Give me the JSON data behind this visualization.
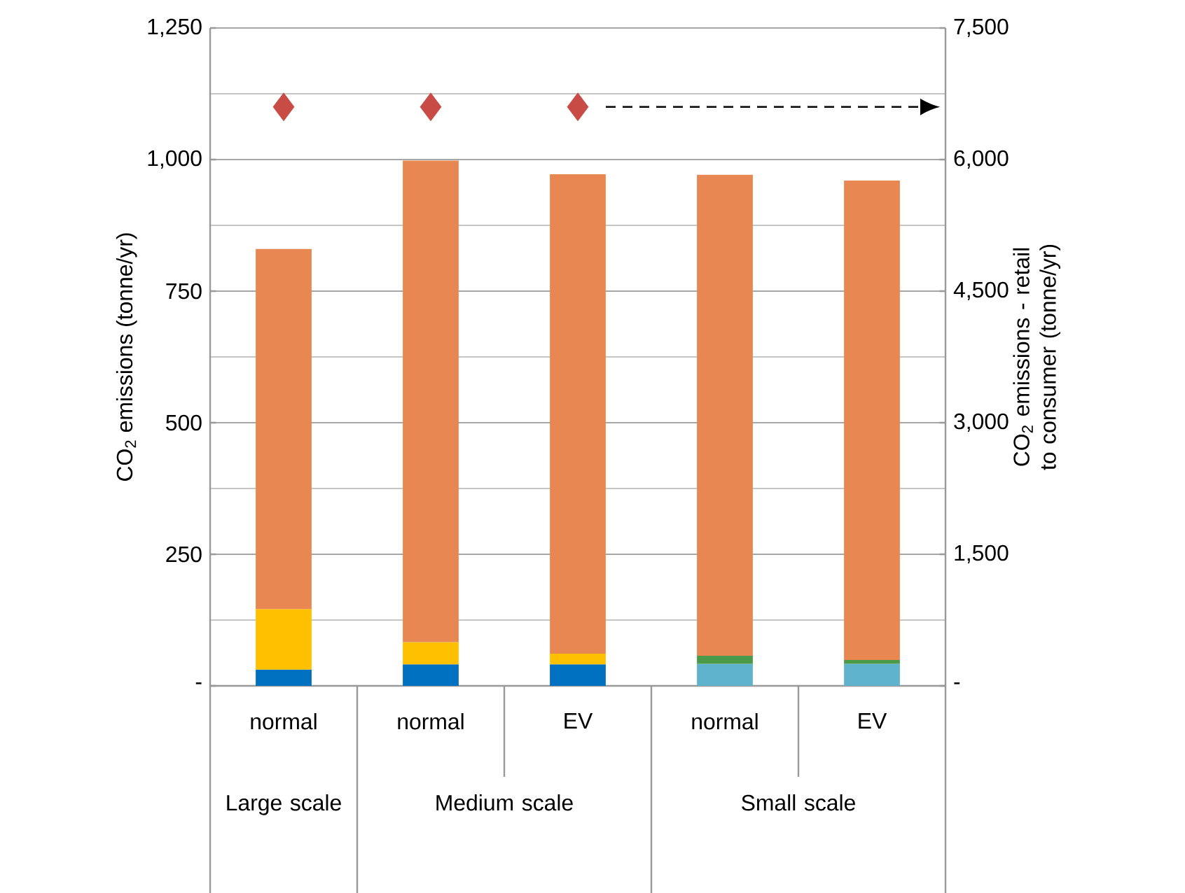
{
  "chart_data": {
    "type": "bar",
    "stacked": true,
    "categories": [
      "normal",
      "normal",
      "EV",
      "normal",
      "EV"
    ],
    "series": [
      {
        "color": "#0070c0",
        "values": [
          31,
          41,
          41,
          null,
          null
        ]
      },
      {
        "color": "#5fb3cc",
        "values": [
          null,
          null,
          null,
          42,
          42
        ]
      },
      {
        "color": "#ffc000",
        "values": [
          115,
          42,
          20,
          null,
          null
        ]
      },
      {
        "color": "#4a9a4a",
        "values": [
          null,
          null,
          null,
          15,
          7
        ]
      },
      {
        "color": "#e88752",
        "values": [
          684,
          915,
          911,
          914,
          911
        ]
      },
      {
        "type": "scatter",
        "axis": "y2",
        "marker": "diamond",
        "color": "#c84b45",
        "values": [
          6600,
          6600,
          6600,
          null,
          null
        ]
      }
    ],
    "ylabel": "CO$_{2}$ emissions (tonne/yr)",
    "y2label": "CO$_{2}$ emissions - retail to consumer (tonne/yr)",
    "ylim": [
      0,
      1250
    ],
    "yticks": [
      {
        "value": 0,
        "label": "-"
      },
      250,
      500,
      750,
      {
        "value": 1000,
        "label": "1,000"
      },
      {
        "value": 1250,
        "label": "1,250"
      }
    ],
    "y2lim": [
      0,
      7500
    ],
    "y2ticks": [
      {
        "value": 0,
        "label": "-"
      },
      {
        "value": 1500,
        "label": "1,500"
      },
      {
        "value": 3000,
        "label": "3,000"
      },
      {
        "value": 4500,
        "label": "4,500"
      },
      {
        "value": 6000,
        "label": "6,000"
      },
      {
        "value": 7500,
        "label": "7,500"
      }
    ],
    "grid": "y",
    "annotations": [
      "Large scale",
      "Medium scale",
      "Small scale"
    ]
  }
}
